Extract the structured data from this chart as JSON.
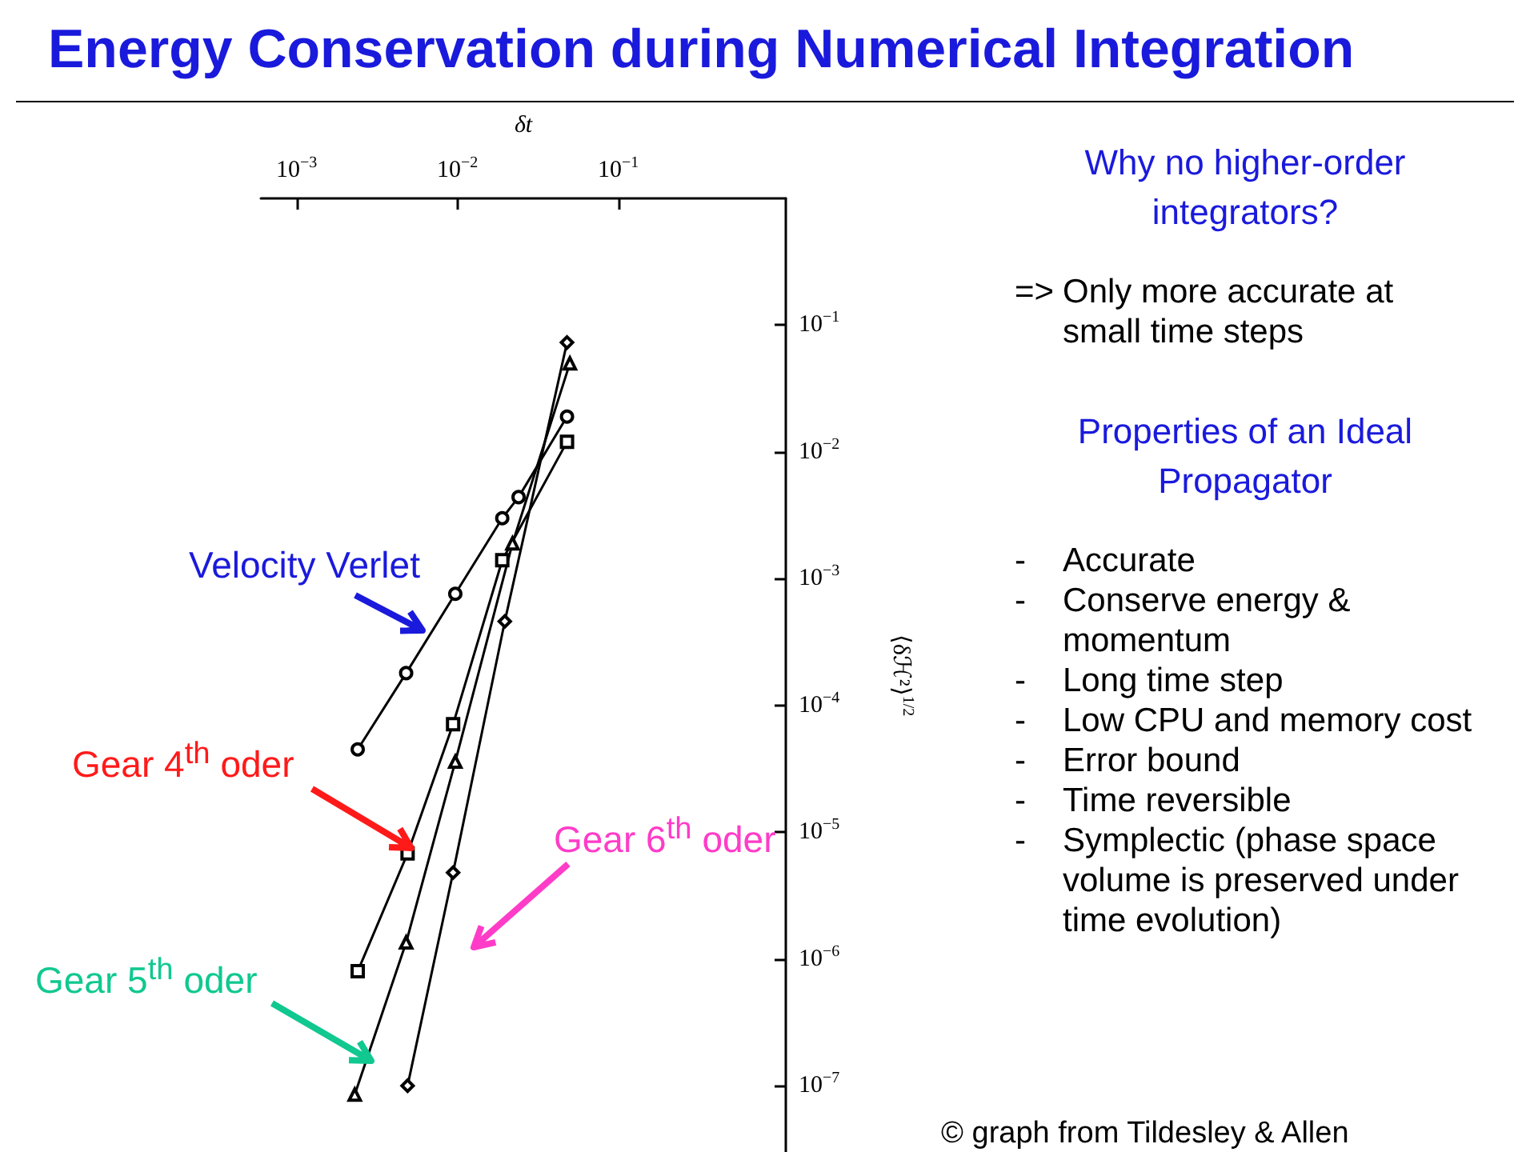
{
  "chart_data": {
    "type": "line",
    "title": "Energy Conservation during Numerical Integration",
    "xlabel": "δt",
    "ylabel": "⟨δℋ²⟩$^{1/2}$",
    "log": "xy",
    "grid": false,
    "legend": false,
    "line_style": "solid",
    "xlim": [
      0.0006,
      1.1
    ],
    "ylim": [
      3e-08,
      1
    ],
    "xticks": [
      {
        "value": 0.001,
        "label": "10$^{−3}$"
      },
      {
        "value": 0.01,
        "label": "10$^{−2}$"
      },
      {
        "value": 0.1,
        "label": "10$^{−1}$"
      }
    ],
    "yticks": [
      {
        "value": 1e-07,
        "label": "10$^{−7}$"
      },
      {
        "value": 1e-06,
        "label": "10$^{−6}$"
      },
      {
        "value": 1e-05,
        "label": "10$^{−5}$"
      },
      {
        "value": 0.0001,
        "label": "10$^{−4}$"
      },
      {
        "value": 0.001,
        "label": "10$^{−3}$"
      },
      {
        "value": 0.01,
        "label": "10$^{−2}$"
      },
      {
        "value": 0.1,
        "label": "10$^{−1}$"
      }
    ],
    "series": [
      {
        "name": "Velocity Verlet",
        "color": "#000000",
        "marker": "circle",
        "x": [
          0.0024,
          0.0048,
          0.0097,
          0.019,
          0.024,
          0.048
        ],
        "values": [
          4.5e-05,
          0.00018,
          0.00076,
          0.003,
          0.0044,
          0.019
        ]
      },
      {
        "name": "Gear 4$^{th}$ oder",
        "color": "#000000",
        "marker": "square",
        "x": [
          0.0024,
          0.0049,
          0.0094,
          0.019,
          0.048
        ],
        "values": [
          8e-07,
          6.8e-06,
          7.1e-05,
          0.0014,
          0.012
        ]
      },
      {
        "name": "Gear 5$^{th}$ oder",
        "color": "#000000",
        "marker": "triangle",
        "x": [
          0.0023,
          0.0048,
          0.0097,
          0.022,
          0.05
        ],
        "values": [
          8.5e-08,
          1.35e-06,
          3.6e-05,
          0.0019,
          0.05
        ]
      },
      {
        "name": "Gear 6$^{th}$ oder",
        "color": "#000000",
        "marker": "diamond",
        "x": [
          0.0049,
          0.0094,
          0.0197,
          0.048
        ],
        "values": [
          1e-07,
          4.8e-06,
          0.00046,
          0.073
        ]
      }
    ],
    "annotations": [
      "Why no higher-order integrators?",
      "=> Only more accurate at small time steps",
      "Properties of an Ideal Propagator",
      "- Accurate",
      "- Conserve energy & momentum",
      "- Long time step",
      "- Low CPU and memory cost",
      "- Error bound",
      "- Time reversible",
      "- Symplectic (phase space volume is preserved under time evolution)",
      "© graph from Tildesley & Allen"
    ]
  }
}
